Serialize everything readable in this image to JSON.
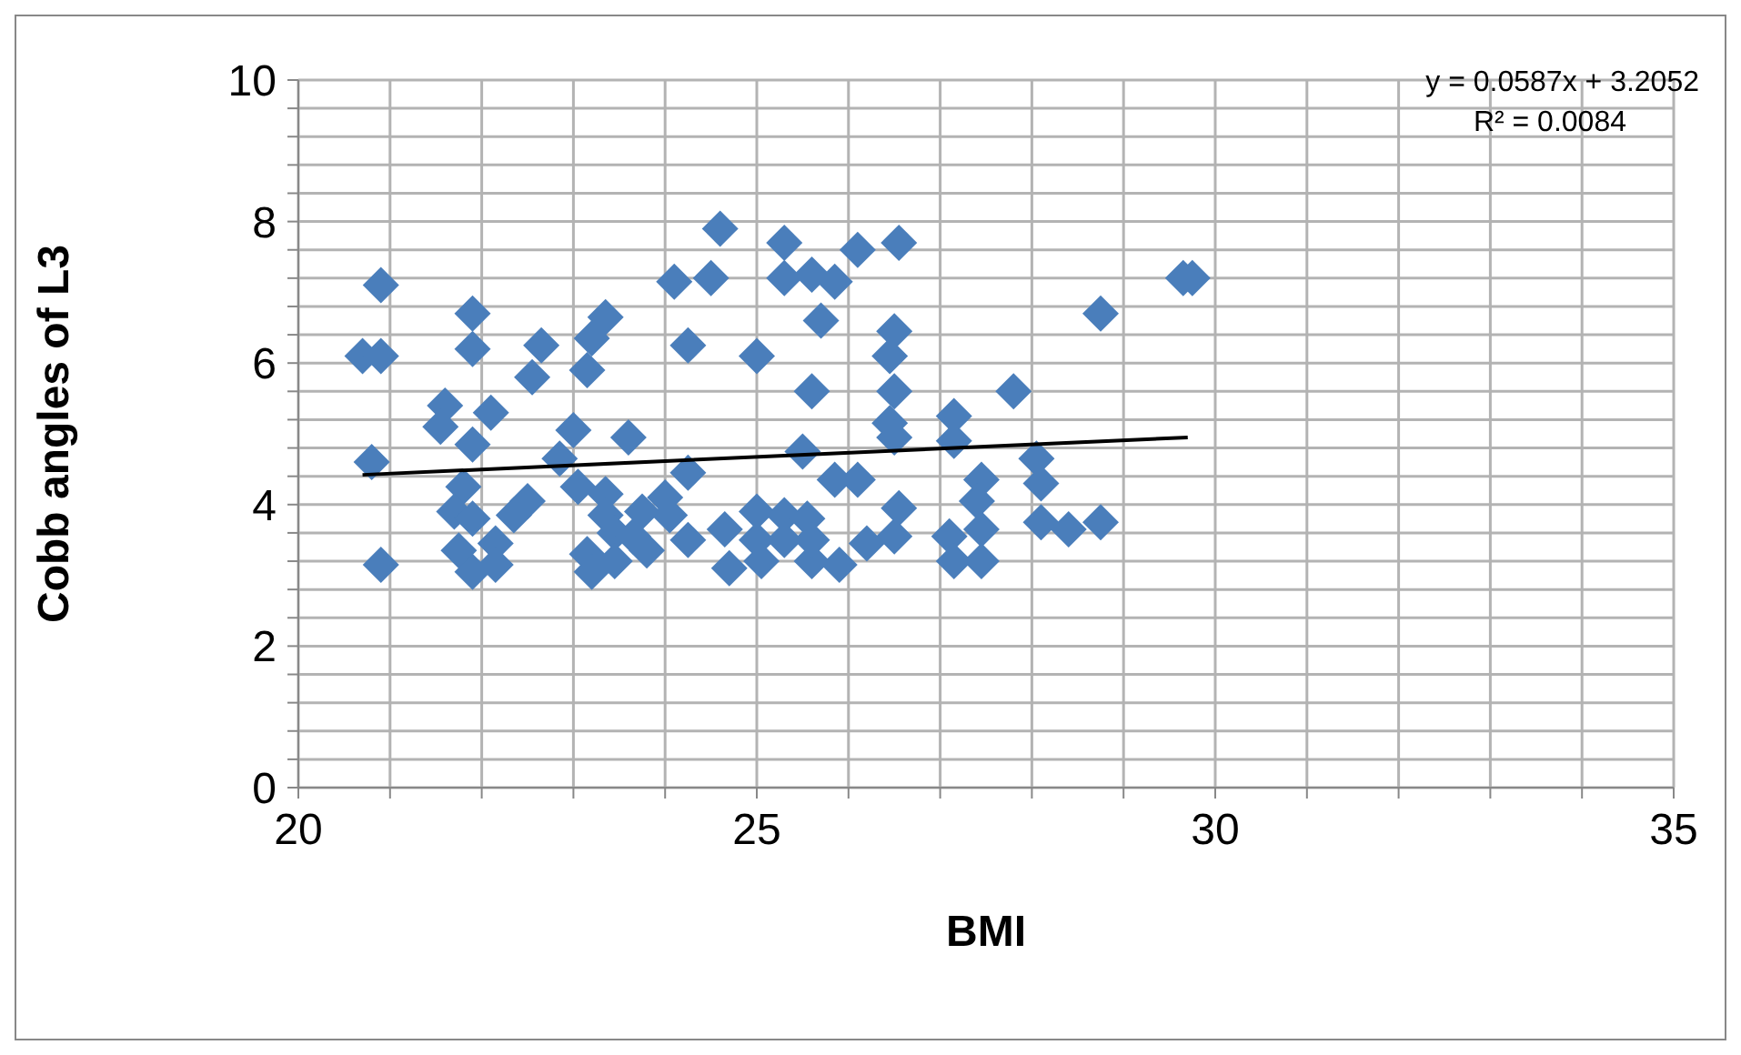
{
  "chart_data": {
    "type": "scatter",
    "xlabel": "BMI",
    "ylabel": "Cobb angles of L3",
    "marker": "diamond",
    "grid": true,
    "xlim": [
      20,
      35
    ],
    "xticks": [
      20,
      {
        "value": 21,
        "label": null
      },
      {
        "value": 22,
        "label": null
      },
      {
        "value": 23,
        "label": null
      },
      {
        "value": 24,
        "label": null
      },
      25,
      {
        "value": 26,
        "label": null
      },
      {
        "value": 27,
        "label": null
      },
      {
        "value": 28,
        "label": null
      },
      {
        "value": 29,
        "label": null
      },
      30,
      {
        "value": 31,
        "label": null
      },
      {
        "value": 32,
        "label": null
      },
      {
        "value": 33,
        "label": null
      },
      {
        "value": 34,
        "label": null
      },
      35
    ],
    "ylim": [
      0,
      10
    ],
    "yticks": [
      0,
      {
        "value": 0.4,
        "label": null
      },
      {
        "value": 0.8,
        "label": null
      },
      {
        "value": 1.2,
        "label": null
      },
      {
        "value": 1.6,
        "label": null
      },
      2,
      {
        "value": 2.4,
        "label": null
      },
      {
        "value": 2.8,
        "label": null
      },
      {
        "value": 3.2,
        "label": null
      },
      {
        "value": 3.6,
        "label": null
      },
      4,
      {
        "value": 4.4,
        "label": null
      },
      {
        "value": 4.8,
        "label": null
      },
      {
        "value": 5.2,
        "label": null
      },
      {
        "value": 5.6,
        "label": null
      },
      6,
      {
        "value": 6.4,
        "label": null
      },
      {
        "value": 6.8,
        "label": null
      },
      {
        "value": 7.2,
        "label": null
      },
      {
        "value": 7.6,
        "label": null
      },
      8,
      {
        "value": 8.4,
        "label": null
      },
      {
        "value": 8.8,
        "label": null
      },
      {
        "value": 9.2,
        "label": null
      },
      {
        "value": 9.6,
        "label": null
      },
      10
    ],
    "annotations": [
      "y = 0.0587x + 3.2052",
      "R² = 0.0084"
    ],
    "series": [
      {
        "color": "#4a7ebb",
        "x": [
          20.7,
          20.9,
          20.9,
          20.8,
          20.9,
          21.6,
          21.55,
          21.9,
          22.1,
          21.9,
          21.9,
          22.65,
          22.55,
          23.0,
          22.85,
          23.35,
          23.2,
          23.15,
          23.6,
          24.1,
          24.5,
          24.6,
          24.25,
          25.0,
          25.3,
          25.3,
          25.6,
          25.7,
          25.6,
          25.5,
          24.25,
          21.8,
          21.7,
          21.9,
          21.75,
          21.9,
          22.15,
          22.15,
          22.35,
          22.5,
          23.05,
          23.35,
          23.35,
          23.15,
          23.2,
          23.45,
          23.45,
          23.75,
          23.65,
          23.8,
          24.0,
          24.05,
          24.25,
          24.65,
          24.7,
          25.0,
          25.0,
          25.05,
          25.3,
          25.3,
          25.55,
          25.6,
          26.1,
          26.55,
          25.85,
          26.5,
          26.45,
          26.5,
          27.8,
          26.45,
          26.5,
          27.15,
          27.15,
          28.75,
          29.65,
          29.75,
          28.05,
          28.1,
          25.85,
          26.1,
          27.45,
          27.4,
          26.55,
          27.45,
          27.1,
          27.15,
          27.45,
          26.5,
          26.2,
          25.9,
          25.6,
          28.1,
          28.4,
          28.75
        ],
        "values": [
          6.1,
          6.1,
          7.1,
          4.6,
          3.15,
          5.4,
          5.1,
          4.85,
          5.3,
          6.7,
          6.2,
          6.25,
          5.8,
          5.05,
          4.65,
          6.65,
          6.35,
          5.9,
          4.95,
          7.15,
          7.2,
          7.9,
          6.25,
          6.1,
          7.7,
          7.2,
          7.25,
          6.6,
          5.6,
          4.75,
          4.45,
          4.25,
          3.9,
          3.8,
          3.35,
          3.05,
          3.45,
          3.15,
          3.85,
          4.05,
          4.25,
          4.15,
          3.85,
          3.3,
          3.05,
          3.6,
          3.2,
          3.9,
          3.55,
          3.35,
          4.1,
          3.85,
          3.5,
          3.65,
          3.1,
          3.9,
          3.5,
          3.2,
          3.85,
          3.5,
          3.8,
          3.2,
          7.6,
          7.7,
          7.15,
          6.45,
          6.1,
          5.6,
          5.6,
          5.15,
          4.95,
          5.25,
          4.9,
          6.7,
          7.2,
          7.2,
          4.65,
          4.3,
          4.35,
          4.35,
          4.35,
          4.05,
          3.95,
          3.65,
          3.55,
          3.2,
          3.2,
          3.55,
          3.45,
          3.15,
          3.5,
          3.75,
          3.65,
          3.75
        ]
      },
      {
        "type": "line",
        "color": "#000000",
        "marker": "none",
        "x": [
          20.7,
          29.7
        ],
        "values": [
          4.42,
          4.95
        ]
      }
    ]
  }
}
